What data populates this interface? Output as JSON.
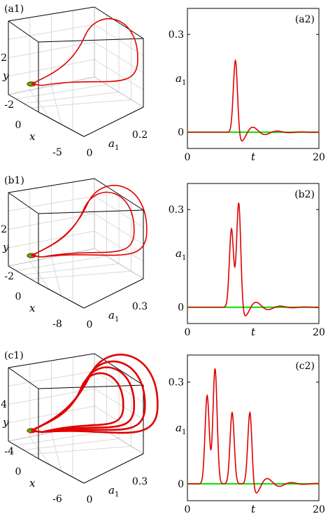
{
  "colors": {
    "trajectory": "#e00000",
    "baseline": "#00e000",
    "frame": "#000000",
    "grid": "#d9d9d9"
  },
  "chart_data": [
    {
      "id": "a1",
      "type": "line",
      "panel_label": "(a1)",
      "axes": {
        "x_label": "x",
        "y_label": "y",
        "a_label": "a",
        "a_sub": "1"
      },
      "y_ticks": [
        "2",
        "-2"
      ],
      "x_ticks": [
        "0",
        "-5"
      ],
      "a_ticks": [
        "0",
        "0.2"
      ],
      "loops": [
        {
          "a": 0.22,
          "y": 2.6,
          "x": -3.8
        }
      ],
      "line_width": 1.6
    },
    {
      "id": "a2",
      "type": "line",
      "panel_label": "(a2)",
      "x_label": "t",
      "y_label": "a",
      "y_sub": "1",
      "x_ticks": [
        "0",
        "20"
      ],
      "y_ticks": [
        "0",
        "0.3"
      ],
      "xlim": [
        0,
        20
      ],
      "ylim": [
        -0.05,
        0.38
      ],
      "peaks": [
        {
          "t": 7.3,
          "a": 0.22
        }
      ]
    },
    {
      "id": "b1",
      "type": "line",
      "panel_label": "(b1)",
      "axes": {
        "x_label": "x",
        "y_label": "y",
        "a_label": "a",
        "a_sub": "1"
      },
      "y_ticks": [
        "2",
        "-2"
      ],
      "x_ticks": [
        "0",
        "-8"
      ],
      "a_ticks": [
        "0",
        "0.3"
      ],
      "loops": [
        {
          "a": 0.27,
          "y": 1.9,
          "x": -5.5
        },
        {
          "a": 0.2,
          "y": 1.2,
          "x": -3.5
        }
      ],
      "line_width": 1.6
    },
    {
      "id": "b2",
      "type": "line",
      "panel_label": "(b2)",
      "x_label": "t",
      "y_label": "a",
      "y_sub": "1",
      "x_ticks": [
        "0",
        "20"
      ],
      "y_ticks": [
        "0",
        "0.3"
      ],
      "xlim": [
        0,
        20
      ],
      "ylim": [
        -0.05,
        0.38
      ],
      "peaks": [
        {
          "t": 6.7,
          "a": 0.24
        },
        {
          "t": 7.8,
          "a": 0.32
        }
      ]
    },
    {
      "id": "c1",
      "type": "line",
      "panel_label": "(c1)",
      "axes": {
        "x_label": "x",
        "y_label": "y",
        "a_label": "a",
        "a_sub": "1"
      },
      "y_ticks": [
        "4",
        "-4"
      ],
      "x_ticks": [
        "0",
        "-6"
      ],
      "a_ticks": [
        "0",
        "0.3"
      ],
      "loops": [
        {
          "a": 0.33,
          "y": 4.5,
          "x": -5.5
        },
        {
          "a": 0.26,
          "y": 3.3,
          "x": -4.2
        },
        {
          "a": 0.2,
          "y": 2.2,
          "x": -3.0
        },
        {
          "a": 0.14,
          "y": 1.2,
          "x": -2.0
        }
      ],
      "line_width": 2.6
    },
    {
      "id": "c2",
      "type": "line",
      "panel_label": "(c2)",
      "x_label": "t",
      "y_label": "a",
      "y_sub": "1",
      "x_ticks": [
        "0",
        "20"
      ],
      "y_ticks": [
        "0",
        "0.3"
      ],
      "xlim": [
        0,
        20
      ],
      "ylim": [
        -0.05,
        0.38
      ],
      "peaks": [
        {
          "t": 3.0,
          "a": 0.26
        },
        {
          "t": 4.2,
          "a": 0.34
        },
        {
          "t": 6.8,
          "a": 0.21
        },
        {
          "t": 9.5,
          "a": 0.21
        }
      ]
    }
  ]
}
